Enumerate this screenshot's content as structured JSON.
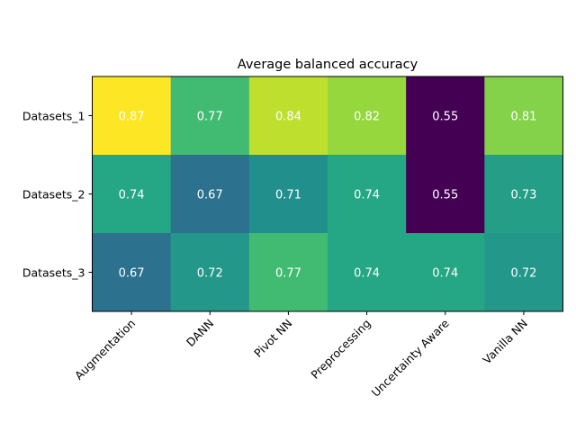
{
  "chart_data": {
    "type": "heatmap",
    "title": "Average balanced accuracy",
    "xlabel": "",
    "ylabel": "",
    "x_categories": [
      "Augmentation",
      "DANN",
      "Pivot NN",
      "Preprocessing",
      "Uncertainty Aware",
      "Vanilla NN"
    ],
    "y_categories": [
      "Datasets_1",
      "Datasets_2",
      "Datasets_3"
    ],
    "values": [
      [
        0.87,
        0.77,
        0.84,
        0.82,
        0.55,
        0.81
      ],
      [
        0.74,
        0.67,
        0.71,
        0.74,
        0.55,
        0.73
      ],
      [
        0.67,
        0.72,
        0.77,
        0.74,
        0.74,
        0.72
      ]
    ],
    "colormap": "viridis",
    "annotation_color": "#ffffff",
    "grid": false,
    "legend": "none"
  }
}
